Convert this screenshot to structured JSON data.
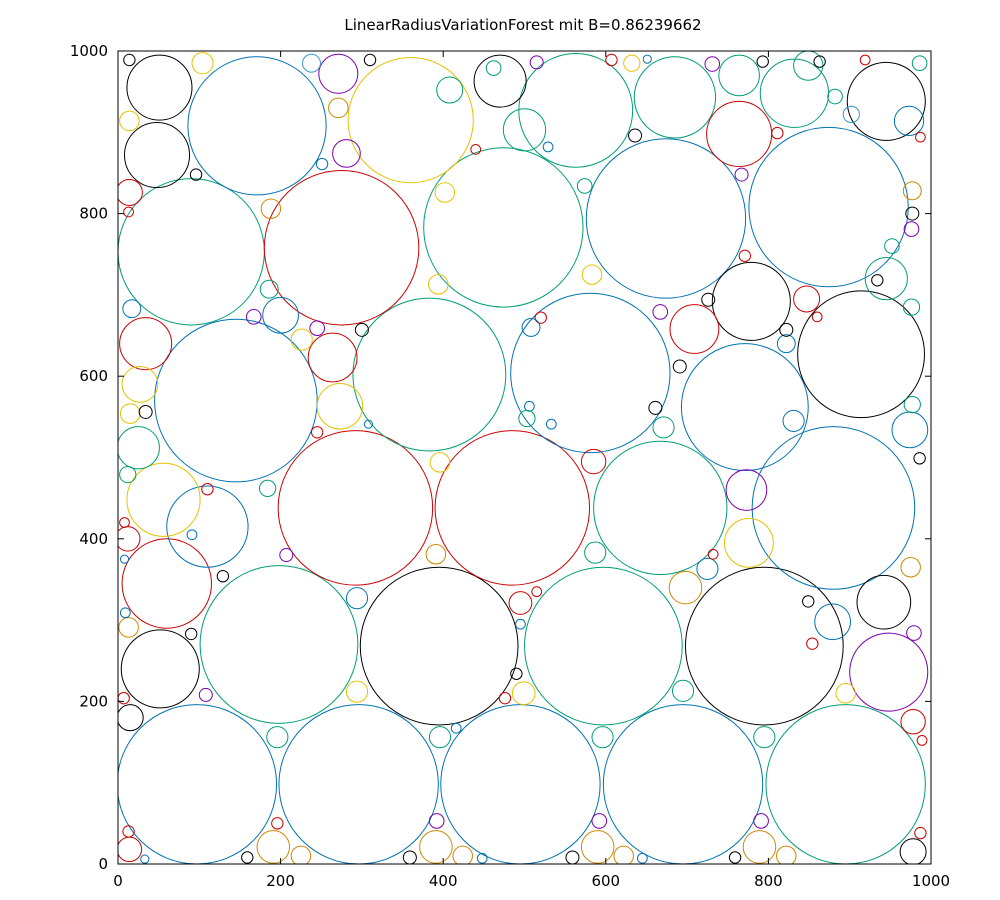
{
  "chart_data": {
    "type": "scatter",
    "title": "LinearRadiusVariationForest mit B=0.86239662",
    "xlabel": "",
    "ylabel": "",
    "xlim": [
      0,
      1000
    ],
    "ylim": [
      0,
      1000
    ],
    "x_ticks": [
      0,
      200,
      400,
      600,
      800,
      1000
    ],
    "y_ticks": [
      0,
      200,
      400,
      600,
      800,
      1000
    ],
    "grid": false,
    "legend": "none",
    "marker": "circle-outline",
    "palette": {
      "black": "#000000",
      "teal": "#009e73",
      "blue": "#0072b2",
      "red": "#cc0000",
      "gold": "#e6c200",
      "orange": "#cc8800",
      "purple": "#7a00b0",
      "cyan": "#3399cc"
    },
    "circles": [
      {
        "x": 97,
        "y": 98,
        "r": 98,
        "color": "blue"
      },
      {
        "x": 296,
        "y": 98,
        "r": 98,
        "color": "blue"
      },
      {
        "x": 495,
        "y": 98,
        "r": 98,
        "color": "blue"
      },
      {
        "x": 695,
        "y": 98,
        "r": 98,
        "color": "blue"
      },
      {
        "x": 895,
        "y": 98,
        "r": 98,
        "color": "teal"
      },
      {
        "x": 198,
        "y": 270,
        "r": 97,
        "color": "teal"
      },
      {
        "x": 395,
        "y": 268,
        "r": 97,
        "color": "black"
      },
      {
        "x": 597,
        "y": 268,
        "r": 97,
        "color": "teal"
      },
      {
        "x": 795,
        "y": 268,
        "r": 97,
        "color": "black"
      },
      {
        "x": 60,
        "y": 345,
        "r": 55,
        "color": "red"
      },
      {
        "x": 52,
        "y": 240,
        "r": 48,
        "color": "black"
      },
      {
        "x": 110,
        "y": 415,
        "r": 50,
        "color": "blue"
      },
      {
        "x": 56,
        "y": 448,
        "r": 45,
        "color": "gold"
      },
      {
        "x": 292,
        "y": 438,
        "r": 95,
        "color": "red"
      },
      {
        "x": 485,
        "y": 438,
        "r": 95,
        "color": "red"
      },
      {
        "x": 667,
        "y": 438,
        "r": 82,
        "color": "teal"
      },
      {
        "x": 880,
        "y": 438,
        "r": 100,
        "color": "blue"
      },
      {
        "x": 145,
        "y": 570,
        "r": 100,
        "color": "blue"
      },
      {
        "x": 383,
        "y": 602,
        "r": 94,
        "color": "teal"
      },
      {
        "x": 581,
        "y": 604,
        "r": 98,
        "color": "blue"
      },
      {
        "x": 771,
        "y": 562,
        "r": 78,
        "color": "blue"
      },
      {
        "x": 914,
        "y": 627,
        "r": 78,
        "color": "black"
      },
      {
        "x": 90,
        "y": 753,
        "r": 90,
        "color": "teal"
      },
      {
        "x": 275,
        "y": 758,
        "r": 95,
        "color": "red"
      },
      {
        "x": 474,
        "y": 783,
        "r": 98,
        "color": "teal"
      },
      {
        "x": 674,
        "y": 794,
        "r": 98,
        "color": "blue"
      },
      {
        "x": 874,
        "y": 808,
        "r": 98,
        "color": "blue"
      },
      {
        "x": 171,
        "y": 908,
        "r": 85,
        "color": "blue"
      },
      {
        "x": 360,
        "y": 915,
        "r": 77,
        "color": "gold"
      },
      {
        "x": 563,
        "y": 927,
        "r": 70,
        "color": "teal"
      },
      {
        "x": 51,
        "y": 955,
        "r": 40,
        "color": "black"
      },
      {
        "x": 48,
        "y": 872,
        "r": 40,
        "color": "black"
      },
      {
        "x": 470,
        "y": 963,
        "r": 32,
        "color": "black"
      },
      {
        "x": 685,
        "y": 943,
        "r": 50,
        "color": "teal"
      },
      {
        "x": 832,
        "y": 948,
        "r": 42,
        "color": "teal"
      },
      {
        "x": 945,
        "y": 938,
        "r": 48,
        "color": "black"
      },
      {
        "x": 764,
        "y": 970,
        "r": 25,
        "color": "teal"
      },
      {
        "x": 764,
        "y": 898,
        "r": 40,
        "color": "red"
      },
      {
        "x": 779,
        "y": 692,
        "r": 48,
        "color": "black"
      },
      {
        "x": 948,
        "y": 236,
        "r": 48,
        "color": "purple"
      },
      {
        "x": 942,
        "y": 322,
        "r": 33,
        "color": "black"
      },
      {
        "x": 34,
        "y": 640,
        "r": 32,
        "color": "red"
      },
      {
        "x": 264,
        "y": 623,
        "r": 30,
        "color": "red"
      },
      {
        "x": 273,
        "y": 563,
        "r": 28,
        "color": "gold"
      },
      {
        "x": 709,
        "y": 658,
        "r": 30,
        "color": "red"
      },
      {
        "x": 945,
        "y": 720,
        "r": 26,
        "color": "teal"
      },
      {
        "x": 271,
        "y": 972,
        "r": 24,
        "color": "purple"
      },
      {
        "x": 25,
        "y": 512,
        "r": 26,
        "color": "teal"
      },
      {
        "x": 500,
        "y": 903,
        "r": 26,
        "color": "teal"
      },
      {
        "x": 776,
        "y": 395,
        "r": 30,
        "color": "gold"
      },
      {
        "x": 773,
        "y": 460,
        "r": 25,
        "color": "purple"
      },
      {
        "x": 974,
        "y": 534,
        "r": 22,
        "color": "blue"
      },
      {
        "x": 847,
        "y": 695,
        "r": 16,
        "color": "red"
      },
      {
        "x": 200,
        "y": 675,
        "r": 22,
        "color": "blue"
      },
      {
        "x": 698,
        "y": 340,
        "r": 20,
        "color": "orange"
      },
      {
        "x": 879,
        "y": 298,
        "r": 22,
        "color": "blue"
      },
      {
        "x": 15,
        "y": 180,
        "r": 16,
        "color": "black"
      },
      {
        "x": 14,
        "y": 18,
        "r": 15,
        "color": "red"
      },
      {
        "x": 191,
        "y": 21,
        "r": 20,
        "color": "orange"
      },
      {
        "x": 391,
        "y": 21,
        "r": 20,
        "color": "orange"
      },
      {
        "x": 590,
        "y": 21,
        "r": 20,
        "color": "orange"
      },
      {
        "x": 789,
        "y": 21,
        "r": 20,
        "color": "orange"
      },
      {
        "x": 978,
        "y": 15,
        "r": 16,
        "color": "black"
      },
      {
        "x": 1000,
        "y": 1000,
        "r": 0,
        "color": "black"
      },
      {
        "x": 14,
        "y": 826,
        "r": 16,
        "color": "red"
      },
      {
        "x": 973,
        "y": 914,
        "r": 18,
        "color": "blue"
      },
      {
        "x": 281,
        "y": 874,
        "r": 17,
        "color": "purple"
      },
      {
        "x": 27,
        "y": 590,
        "r": 22,
        "color": "gold"
      },
      {
        "x": 271,
        "y": 930,
        "r": 12,
        "color": "orange"
      },
      {
        "x": 408,
        "y": 952,
        "r": 16,
        "color": "teal"
      },
      {
        "x": 104,
        "y": 985,
        "r": 13,
        "color": "gold"
      },
      {
        "x": 14,
        "y": 914,
        "r": 12,
        "color": "gold"
      },
      {
        "x": 14,
        "y": 50,
        "r": 1,
        "color": "blue"
      },
      {
        "x": 238,
        "y": 985,
        "r": 11,
        "color": "cyan"
      },
      {
        "x": 849,
        "y": 982,
        "r": 18,
        "color": "teal"
      },
      {
        "x": 902,
        "y": 922,
        "r": 10,
        "color": "cyan"
      },
      {
        "x": 402,
        "y": 826,
        "r": 12,
        "color": "gold"
      },
      {
        "x": 394,
        "y": 713,
        "r": 12,
        "color": "gold"
      },
      {
        "x": 188,
        "y": 806,
        "r": 12,
        "color": "orange"
      },
      {
        "x": 583,
        "y": 725,
        "r": 12,
        "color": "gold"
      },
      {
        "x": 186,
        "y": 707,
        "r": 11,
        "color": "teal"
      },
      {
        "x": 226,
        "y": 645,
        "r": 13,
        "color": "gold"
      },
      {
        "x": 831,
        "y": 545,
        "r": 13,
        "color": "blue"
      },
      {
        "x": 977,
        "y": 828,
        "r": 11,
        "color": "orange"
      },
      {
        "x": 952,
        "y": 760,
        "r": 9,
        "color": "teal"
      },
      {
        "x": 976,
        "y": 685,
        "r": 10,
        "color": "teal"
      },
      {
        "x": 822,
        "y": 640,
        "r": 11,
        "color": "blue"
      },
      {
        "x": 977,
        "y": 565,
        "r": 10,
        "color": "teal"
      },
      {
        "x": 17,
        "y": 683,
        "r": 11,
        "color": "blue"
      },
      {
        "x": 15,
        "y": 554,
        "r": 12,
        "color": "gold"
      },
      {
        "x": 671,
        "y": 537,
        "r": 13,
        "color": "teal"
      },
      {
        "x": 587,
        "y": 383,
        "r": 13,
        "color": "teal"
      },
      {
        "x": 725,
        "y": 363,
        "r": 13,
        "color": "blue"
      },
      {
        "x": 975,
        "y": 365,
        "r": 12,
        "color": "orange"
      },
      {
        "x": 472,
        "y": 968,
        "r": 1,
        "color": "black"
      },
      {
        "x": 391,
        "y": 381,
        "r": 12,
        "color": "orange"
      },
      {
        "x": 396,
        "y": 494,
        "r": 12,
        "color": "gold"
      },
      {
        "x": 585,
        "y": 495,
        "r": 15,
        "color": "red"
      },
      {
        "x": 184,
        "y": 462,
        "r": 10,
        "color": "teal"
      },
      {
        "x": 12,
        "y": 400,
        "r": 15,
        "color": "red"
      },
      {
        "x": 12,
        "y": 479,
        "r": 10,
        "color": "teal"
      },
      {
        "x": 13,
        "y": 291,
        "r": 12,
        "color": "orange"
      },
      {
        "x": 294,
        "y": 327,
        "r": 13,
        "color": "blue"
      },
      {
        "x": 495,
        "y": 321,
        "r": 14,
        "color": "red"
      },
      {
        "x": 294,
        "y": 212,
        "r": 13,
        "color": "gold"
      },
      {
        "x": 499,
        "y": 210,
        "r": 14,
        "color": "gold"
      },
      {
        "x": 695,
        "y": 213,
        "r": 13,
        "color": "teal"
      },
      {
        "x": 895,
        "y": 210,
        "r": 12,
        "color": "gold"
      },
      {
        "x": 196,
        "y": 156,
        "r": 13,
        "color": "teal"
      },
      {
        "x": 396,
        "y": 156,
        "r": 13,
        "color": "teal"
      },
      {
        "x": 596,
        "y": 156,
        "r": 13,
        "color": "teal"
      },
      {
        "x": 795,
        "y": 156,
        "r": 13,
        "color": "teal"
      },
      {
        "x": 978,
        "y": 175,
        "r": 15,
        "color": "red"
      },
      {
        "x": 225,
        "y": 10,
        "r": 12,
        "color": "orange"
      },
      {
        "x": 424,
        "y": 10,
        "r": 12,
        "color": "orange"
      },
      {
        "x": 622,
        "y": 10,
        "r": 12,
        "color": "orange"
      },
      {
        "x": 822,
        "y": 10,
        "r": 12,
        "color": "orange"
      },
      {
        "x": 392,
        "y": 53,
        "r": 9,
        "color": "purple"
      },
      {
        "x": 592,
        "y": 53,
        "r": 9,
        "color": "purple"
      },
      {
        "x": 791,
        "y": 53,
        "r": 9,
        "color": "purple"
      },
      {
        "x": 979,
        "y": 284,
        "r": 9,
        "color": "purple"
      },
      {
        "x": 944,
        "y": 980,
        "r": 1,
        "color": "black"
      },
      {
        "x": 273,
        "y": 907,
        "r": 1,
        "color": "black"
      },
      {
        "x": 12,
        "y": 989,
        "r": 1,
        "color": "black"
      },
      {
        "x": 714,
        "y": 983,
        "r": 1,
        "color": "black"
      }
    ],
    "small_circles": [
      {
        "x": 14,
        "y": 989,
        "r": 7,
        "color": "black"
      },
      {
        "x": 310,
        "y": 989,
        "r": 7,
        "color": "black"
      },
      {
        "x": 462,
        "y": 979,
        "r": 9,
        "color": "teal"
      },
      {
        "x": 515,
        "y": 986,
        "r": 8,
        "color": "purple"
      },
      {
        "x": 607,
        "y": 989,
        "r": 7,
        "color": "red"
      },
      {
        "x": 632,
        "y": 985,
        "r": 10,
        "color": "gold"
      },
      {
        "x": 651,
        "y": 990,
        "r": 5,
        "color": "blue"
      },
      {
        "x": 731,
        "y": 984,
        "r": 9,
        "color": "purple"
      },
      {
        "x": 793,
        "y": 987,
        "r": 7,
        "color": "black"
      },
      {
        "x": 863,
        "y": 987,
        "r": 7,
        "color": "black"
      },
      {
        "x": 919,
        "y": 989,
        "r": 6,
        "color": "red"
      },
      {
        "x": 986,
        "y": 985,
        "r": 9,
        "color": "teal"
      },
      {
        "x": 882,
        "y": 944,
        "r": 9,
        "color": "teal"
      },
      {
        "x": 935,
        "y": 932,
        "r": 1,
        "color": "black"
      },
      {
        "x": 636,
        "y": 896,
        "r": 8,
        "color": "black"
      },
      {
        "x": 811,
        "y": 899,
        "r": 7,
        "color": "red"
      },
      {
        "x": 987,
        "y": 894,
        "r": 6,
        "color": "red"
      },
      {
        "x": 529,
        "y": 882,
        "r": 6,
        "color": "blue"
      },
      {
        "x": 440,
        "y": 879,
        "r": 6,
        "color": "red"
      },
      {
        "x": 251,
        "y": 861,
        "r": 7,
        "color": "blue"
      },
      {
        "x": 96,
        "y": 848,
        "r": 7,
        "color": "black"
      },
      {
        "x": 574,
        "y": 834,
        "r": 9,
        "color": "teal"
      },
      {
        "x": 767,
        "y": 848,
        "r": 8,
        "color": "purple"
      },
      {
        "x": 13,
        "y": 802,
        "r": 6,
        "color": "red"
      },
      {
        "x": 977,
        "y": 800,
        "r": 8,
        "color": "black"
      },
      {
        "x": 976,
        "y": 781,
        "r": 9,
        "color": "purple"
      },
      {
        "x": 771,
        "y": 748,
        "r": 7,
        "color": "red"
      },
      {
        "x": 934,
        "y": 718,
        "r": 7,
        "color": "black"
      },
      {
        "x": 760,
        "y": 694,
        "r": 1,
        "color": "black"
      },
      {
        "x": 726,
        "y": 694,
        "r": 8,
        "color": "black"
      },
      {
        "x": 860,
        "y": 673,
        "r": 6,
        "color": "red"
      },
      {
        "x": 667,
        "y": 679,
        "r": 9,
        "color": "purple"
      },
      {
        "x": 520,
        "y": 672,
        "r": 7,
        "color": "red"
      },
      {
        "x": 508,
        "y": 660,
        "r": 11,
        "color": "blue"
      },
      {
        "x": 167,
        "y": 673,
        "r": 9,
        "color": "purple"
      },
      {
        "x": 245,
        "y": 659,
        "r": 9,
        "color": "purple"
      },
      {
        "x": 300,
        "y": 657,
        "r": 8,
        "color": "black"
      },
      {
        "x": 822,
        "y": 657,
        "r": 8,
        "color": "black"
      },
      {
        "x": 691,
        "y": 612,
        "r": 8,
        "color": "black"
      },
      {
        "x": 34,
        "y": 556,
        "r": 8,
        "color": "black"
      },
      {
        "x": 661,
        "y": 561,
        "r": 8,
        "color": "black"
      },
      {
        "x": 506,
        "y": 563,
        "r": 6,
        "color": "blue"
      },
      {
        "x": 503,
        "y": 548,
        "r": 10,
        "color": "teal"
      },
      {
        "x": 308,
        "y": 541,
        "r": 5,
        "color": "blue"
      },
      {
        "x": 533,
        "y": 541,
        "r": 6,
        "color": "blue"
      },
      {
        "x": 245,
        "y": 531,
        "r": 7,
        "color": "red"
      },
      {
        "x": 986,
        "y": 499,
        "r": 7,
        "color": "black"
      },
      {
        "x": 110,
        "y": 461,
        "r": 7,
        "color": "red"
      },
      {
        "x": 8,
        "y": 420,
        "r": 6,
        "color": "red"
      },
      {
        "x": 91,
        "y": 405,
        "r": 6,
        "color": "blue"
      },
      {
        "x": 8,
        "y": 375,
        "r": 5,
        "color": "blue"
      },
      {
        "x": 207,
        "y": 380,
        "r": 8,
        "color": "purple"
      },
      {
        "x": 732,
        "y": 381,
        "r": 6,
        "color": "red"
      },
      {
        "x": 129,
        "y": 354,
        "r": 7,
        "color": "black"
      },
      {
        "x": 515,
        "y": 335,
        "r": 6,
        "color": "red"
      },
      {
        "x": 849,
        "y": 323,
        "r": 7,
        "color": "black"
      },
      {
        "x": 9,
        "y": 309,
        "r": 6,
        "color": "blue"
      },
      {
        "x": 495,
        "y": 295,
        "r": 6,
        "color": "blue"
      },
      {
        "x": 90,
        "y": 283,
        "r": 7,
        "color": "black"
      },
      {
        "x": 854,
        "y": 271,
        "r": 7,
        "color": "red"
      },
      {
        "x": 490,
        "y": 234,
        "r": 7,
        "color": "black"
      },
      {
        "x": 108,
        "y": 208,
        "r": 8,
        "color": "purple"
      },
      {
        "x": 7,
        "y": 204,
        "r": 7,
        "color": "red"
      },
      {
        "x": 476,
        "y": 204,
        "r": 7,
        "color": "red"
      },
      {
        "x": 416,
        "y": 167,
        "r": 6,
        "color": "blue"
      },
      {
        "x": 989,
        "y": 152,
        "r": 6,
        "color": "red"
      },
      {
        "x": 196,
        "y": 50,
        "r": 7,
        "color": "red"
      },
      {
        "x": 13,
        "y": 40,
        "r": 7,
        "color": "red"
      },
      {
        "x": 987,
        "y": 38,
        "r": 7,
        "color": "red"
      },
      {
        "x": 159,
        "y": 8,
        "r": 7,
        "color": "black"
      },
      {
        "x": 359,
        "y": 8,
        "r": 8,
        "color": "black"
      },
      {
        "x": 559,
        "y": 8,
        "r": 8,
        "color": "black"
      },
      {
        "x": 759,
        "y": 8,
        "r": 7,
        "color": "black"
      },
      {
        "x": 448,
        "y": 7,
        "r": 6,
        "color": "blue"
      },
      {
        "x": 645,
        "y": 7,
        "r": 6,
        "color": "blue"
      },
      {
        "x": 33,
        "y": 6,
        "r": 5,
        "color": "blue"
      }
    ]
  }
}
